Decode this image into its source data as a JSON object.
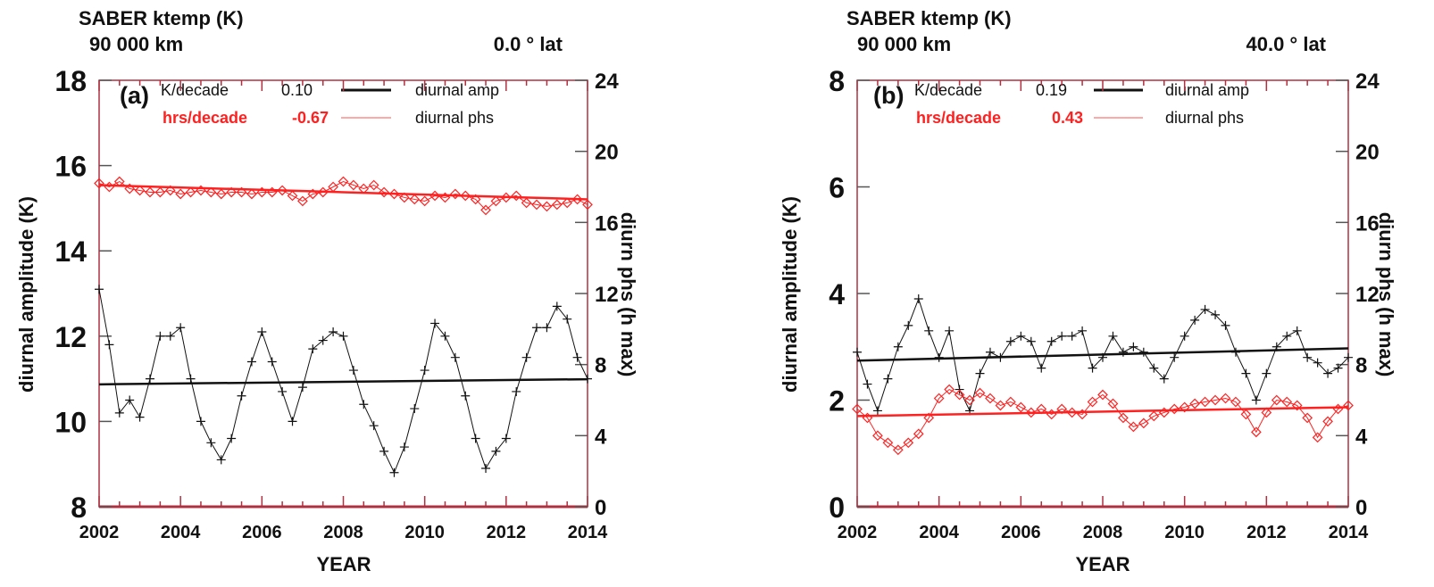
{
  "colors": {
    "amp": "#111111",
    "phs": "#ff2020",
    "frame": "#b03040"
  },
  "chart_data": [
    {
      "type": "line",
      "panel_label": "(a)",
      "title": "SABER ktemp (K)",
      "altitude": "90 000 km",
      "latitude": "0.0 ° lat",
      "xlabel": "YEAR",
      "ylabel": "diurnal amplitude (K)",
      "y2label": "diurn phs (h max)",
      "xlim": [
        2002,
        2014
      ],
      "ylim": [
        8,
        18
      ],
      "y2lim": [
        0,
        24
      ],
      "xticks": [
        "2002",
        "2004",
        "2006",
        "2008",
        "2010",
        "2012",
        "2014"
      ],
      "yticks": [
        "8",
        "10",
        "12",
        "14",
        "16",
        "18"
      ],
      "y2ticks": [
        "0",
        "4",
        "8",
        "12",
        "16",
        "20",
        "24"
      ],
      "legend": [
        {
          "unit": "K/decade",
          "value": "0.10",
          "label": "diurnal amp",
          "color": "#111111"
        },
        {
          "unit": "hrs/decade",
          "value": "-0.67",
          "label": "diurnal phs",
          "color": "#ff2020"
        }
      ],
      "x_step": 0.25,
      "series": [
        {
          "name": "diurnal amp",
          "axis": "left",
          "marker": "plus",
          "values": [
            13.1,
            11.8,
            10.2,
            10.5,
            10.1,
            11.0,
            12.0,
            12.0,
            12.2,
            11.0,
            10.0,
            9.5,
            9.1,
            9.6,
            10.6,
            11.4,
            12.1,
            11.4,
            10.7,
            10.0,
            10.8,
            11.7,
            11.9,
            12.1,
            12.0,
            11.2,
            10.4,
            9.9,
            9.3,
            8.8,
            9.4,
            10.3,
            11.2,
            12.3,
            12.0,
            11.5,
            10.6,
            9.6,
            8.9,
            9.3,
            9.6,
            10.7,
            11.5,
            12.2,
            12.2,
            12.7,
            12.4,
            11.5,
            11.0
          ],
          "trend": [
            10.87,
            10.99
          ]
        },
        {
          "name": "diurnal phs",
          "axis": "right",
          "marker": "diamond",
          "values": [
            18.2,
            18.0,
            18.3,
            17.9,
            17.8,
            17.7,
            17.7,
            17.8,
            17.6,
            17.7,
            17.8,
            17.7,
            17.6,
            17.7,
            17.7,
            17.6,
            17.7,
            17.7,
            17.8,
            17.5,
            17.2,
            17.6,
            17.7,
            18.0,
            18.3,
            18.1,
            17.9,
            18.1,
            17.7,
            17.6,
            17.4,
            17.3,
            17.2,
            17.5,
            17.4,
            17.6,
            17.5,
            17.3,
            16.7,
            17.2,
            17.4,
            17.5,
            17.1,
            17.0,
            16.9,
            17.0,
            17.1,
            17.3,
            17.0
          ],
          "trend": [
            18.1,
            17.3
          ]
        }
      ]
    },
    {
      "type": "line",
      "panel_label": "(b)",
      "title": "SABER ktemp (K)",
      "altitude": "90 000 km",
      "latitude": "40.0 ° lat",
      "xlabel": "YEAR",
      "ylabel": "diurnal amplitude (K)",
      "y2label": "diurn phs (h max)",
      "xlim": [
        2002,
        2014
      ],
      "ylim": [
        0,
        8
      ],
      "y2lim": [
        0,
        24
      ],
      "xticks": [
        "2002",
        "2004",
        "2006",
        "2008",
        "2010",
        "2012",
        "2014"
      ],
      "yticks": [
        "0",
        "2",
        "4",
        "6",
        "8"
      ],
      "y2ticks": [
        "0",
        "4",
        "8",
        "12",
        "16",
        "20",
        "24"
      ],
      "legend": [
        {
          "unit": "K/decade",
          "value": "0.19",
          "label": "diurnal amp",
          "color": "#111111"
        },
        {
          "unit": "hrs/decade",
          "value": "0.43",
          "label": "diurnal phs",
          "color": "#ff2020"
        }
      ],
      "x_step": 0.25,
      "series": [
        {
          "name": "diurnal amp",
          "axis": "left",
          "marker": "plus",
          "values": [
            2.9,
            2.3,
            1.8,
            2.4,
            3.0,
            3.4,
            3.9,
            3.3,
            2.8,
            3.3,
            2.2,
            1.8,
            2.5,
            2.9,
            2.8,
            3.1,
            3.2,
            3.1,
            2.6,
            3.1,
            3.2,
            3.2,
            3.3,
            2.6,
            2.8,
            3.2,
            2.9,
            3.0,
            2.9,
            2.6,
            2.4,
            2.8,
            3.2,
            3.5,
            3.7,
            3.6,
            3.4,
            2.9,
            2.5,
            2.0,
            2.5,
            3.0,
            3.2,
            3.3,
            2.8,
            2.7,
            2.5,
            2.6,
            2.8
          ],
          "trend": [
            2.74,
            2.97
          ]
        },
        {
          "name": "diurnal phs",
          "axis": "right",
          "marker": "diamond",
          "values": [
            5.5,
            5.0,
            4.0,
            3.6,
            3.2,
            3.6,
            4.1,
            5.0,
            6.1,
            6.6,
            6.3,
            6.0,
            6.4,
            6.1,
            5.7,
            5.9,
            5.6,
            5.3,
            5.5,
            5.2,
            5.5,
            5.3,
            5.2,
            5.9,
            6.3,
            5.8,
            5.0,
            4.5,
            4.7,
            5.1,
            5.3,
            5.5,
            5.6,
            5.8,
            5.9,
            6.0,
            6.1,
            5.9,
            5.2,
            4.2,
            5.3,
            6.0,
            5.9,
            5.7,
            5.0,
            3.9,
            4.8,
            5.5,
            5.7
          ],
          "trend": [
            5.1,
            5.6
          ]
        }
      ]
    }
  ]
}
